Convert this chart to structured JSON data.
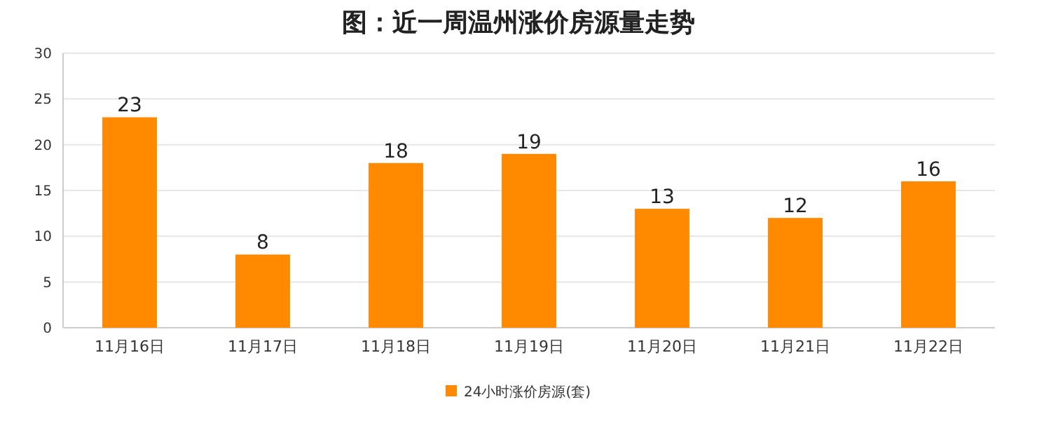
{
  "chart_data": {
    "type": "bar",
    "title": "图：近一周温州涨价房源量走势",
    "categories": [
      "11月16日",
      "11月17日",
      "11月18日",
      "11月19日",
      "11月20日",
      "11月21日",
      "11月22日"
    ],
    "series": [
      {
        "name": "24小时涨价房源(套)",
        "color": "#ff8a00",
        "values": [
          23,
          8,
          18,
          19,
          13,
          12,
          16
        ]
      }
    ],
    "ylim": [
      0,
      30
    ],
    "yticks": [
      0,
      5,
      10,
      15,
      20,
      25,
      30
    ],
    "grid": "y",
    "legend": "bottom",
    "data_labels": true
  }
}
